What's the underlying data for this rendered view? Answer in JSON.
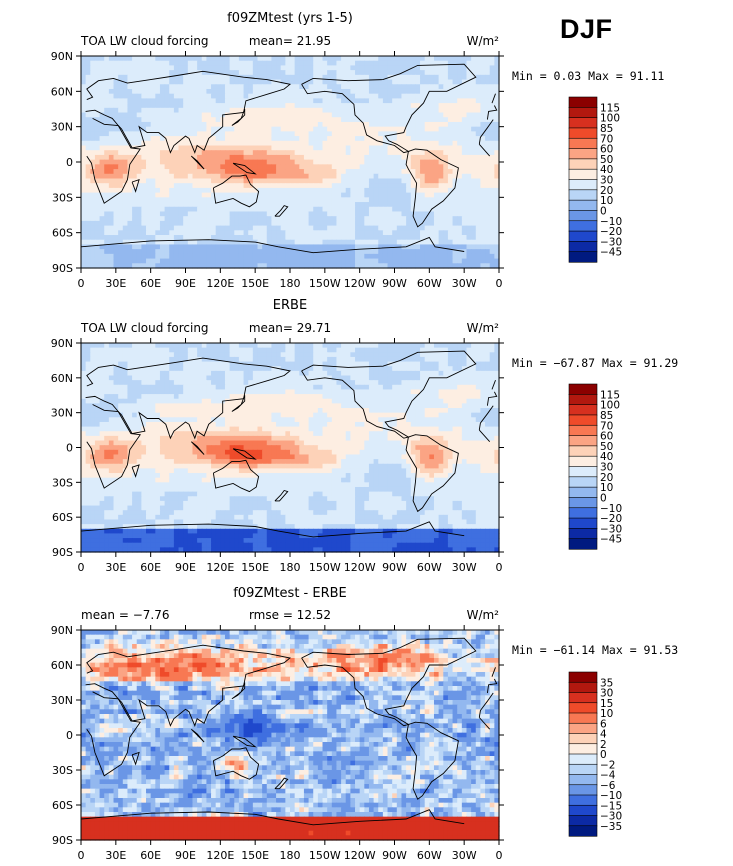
{
  "season": "DJF",
  "chart_data": [
    {
      "type": "heatmap",
      "title": "f09ZMtest (yrs 1-5)",
      "left_label": "TOA LW cloud forcing",
      "center_label": "mean=  21.95",
      "units": "W/m²",
      "minmax_label": "Min =   0.03 Max =  91.11",
      "mean": 21.95,
      "min": 0.03,
      "max": 91.11,
      "lat_ticks": [
        "90N",
        "60N",
        "30N",
        "0",
        "30S",
        "60S",
        "90S"
      ],
      "lon_ticks": [
        "0",
        "30E",
        "60E",
        "90E",
        "120E",
        "150E",
        "180",
        "150W",
        "120W",
        "90W",
        "60W",
        "30W",
        "0"
      ],
      "legend_levels": [
        "115",
        "100",
        "85",
        "70",
        "60",
        "50",
        "40",
        "30",
        "20",
        "10",
        "0",
        "−10",
        "−20",
        "−30",
        "−45"
      ],
      "legend_colors": [
        "#8b0000",
        "#b2180f",
        "#d7301f",
        "#ef4b2a",
        "#f87853",
        "#fba484",
        "#fdd2b8",
        "#fdeee2",
        "#dcecfb",
        "#b9d5f6",
        "#93b8ef",
        "#6a96e6",
        "#3f6fe0",
        "#1f48cc",
        "#0c2aa5",
        "#001a80"
      ],
      "fields": {
        "zonal_mode": "total_lw"
      }
    },
    {
      "type": "heatmap",
      "title": "ERBE",
      "left_label": "TOA LW cloud forcing",
      "center_label": "mean=  29.71",
      "units": "W/m²",
      "minmax_label": "Min = −67.87 Max =  91.29",
      "mean": 29.71,
      "min": -67.87,
      "max": 91.29,
      "lat_ticks": [
        "90N",
        "60N",
        "30N",
        "0",
        "30S",
        "60S",
        "90S"
      ],
      "lon_ticks": [
        "0",
        "30E",
        "60E",
        "90E",
        "120E",
        "150E",
        "180",
        "150W",
        "120W",
        "90W",
        "60W",
        "30W",
        "0"
      ],
      "legend_levels": [
        "115",
        "100",
        "85",
        "70",
        "60",
        "50",
        "40",
        "30",
        "20",
        "10",
        "0",
        "−10",
        "−20",
        "−30",
        "−45"
      ],
      "legend_colors": [
        "#8b0000",
        "#b2180f",
        "#d7301f",
        "#ef4b2a",
        "#f87853",
        "#fba484",
        "#fdd2b8",
        "#fdeee2",
        "#dcecfb",
        "#b9d5f6",
        "#93b8ef",
        "#6a96e6",
        "#3f6fe0",
        "#1f48cc",
        "#0c2aa5",
        "#001a80"
      ],
      "fields": {
        "zonal_mode": "erbe"
      }
    },
    {
      "type": "heatmap",
      "title": "f09ZMtest - ERBE",
      "left_label": "mean =   −7.76",
      "center_label": "rmse =  12.52",
      "units": "W/m²",
      "minmax_label": "Min = −61.14 Max =  91.53",
      "mean": -7.76,
      "rmse": 12.52,
      "min": -61.14,
      "max": 91.53,
      "lat_ticks": [
        "90N",
        "60N",
        "30N",
        "0",
        "30S",
        "60S",
        "90S"
      ],
      "lon_ticks": [
        "0",
        "30E",
        "60E",
        "90E",
        "120E",
        "150E",
        "180",
        "150W",
        "120W",
        "90W",
        "60W",
        "30W",
        "0"
      ],
      "legend_levels": [
        "35",
        "30",
        "15",
        "10",
        "6",
        "4",
        "2",
        "0",
        "−2",
        "−4",
        "−6",
        "−10",
        "−15",
        "−30",
        "−35"
      ],
      "legend_colors": [
        "#8b0000",
        "#b2180f",
        "#d7301f",
        "#ef4b2a",
        "#f87853",
        "#fba484",
        "#fdd2b8",
        "#fdeee2",
        "#dcecfb",
        "#b9d5f6",
        "#93b8ef",
        "#6a96e6",
        "#3f6fe0",
        "#1f48cc",
        "#0c2aa5",
        "#001a80"
      ],
      "fields": {
        "zonal_mode": "diff"
      }
    }
  ]
}
